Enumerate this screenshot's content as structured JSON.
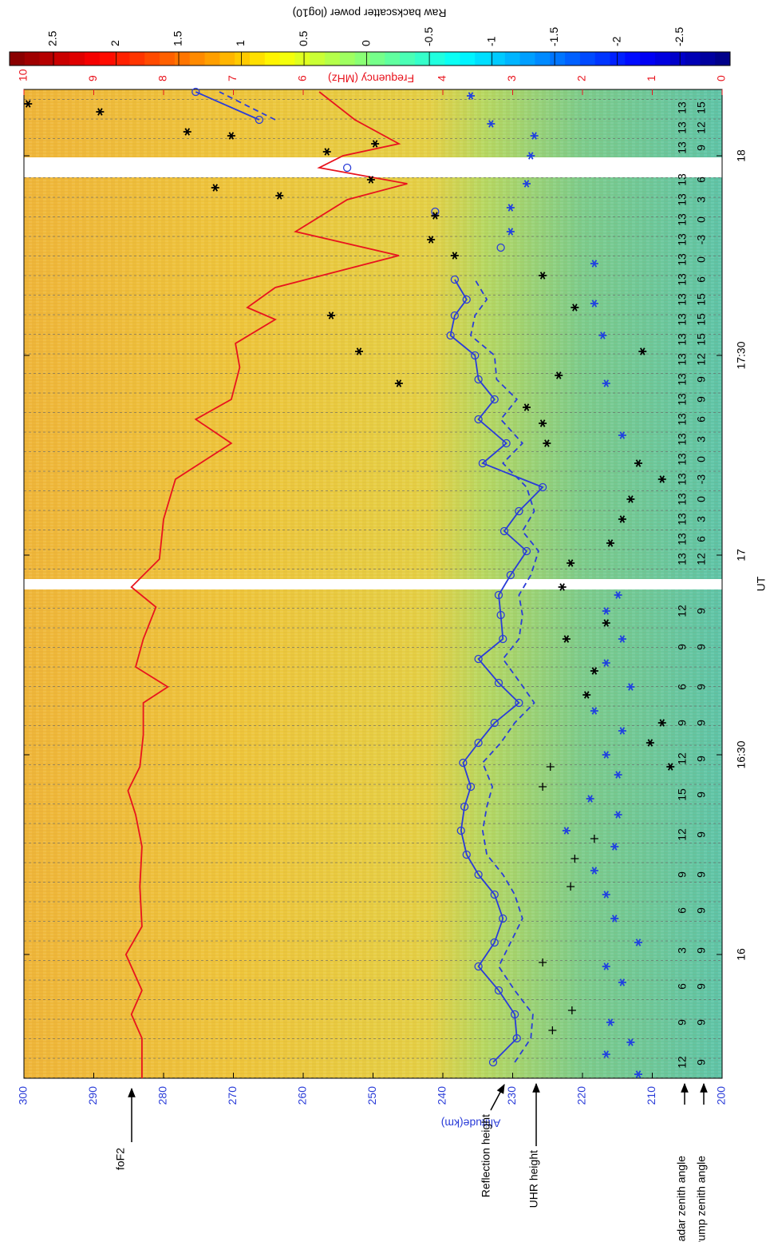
{
  "chart_data": {
    "type": "line",
    "xlabel": "UT",
    "ylabel": "Altitude(km)",
    "y2label": "Frequency (MHz)",
    "xlim": [
      15.69,
      18.166
    ],
    "xticks": [
      16,
      {
        "value": 16.5,
        "label": "16:30"
      },
      17,
      {
        "value": 17.5,
        "label": "17:30"
      },
      18
    ],
    "ylim": [
      200,
      300
    ],
    "yticks": [
      200,
      210,
      220,
      230,
      240,
      250,
      260,
      270,
      280,
      290,
      300
    ],
    "y2lim": [
      0,
      10
    ],
    "y2ticks": [
      0,
      1,
      2,
      3,
      4,
      6,
      7,
      8,
      9,
      10
    ],
    "ycolor": "#2a3cd8",
    "y2color": "#e8141e",
    "grid": false,
    "colorbar": {
      "label": "Raw backscatter power (log10)",
      "clim": [
        -2.9,
        2.85
      ],
      "ticks": [
        2.5,
        2,
        1.5,
        1,
        0.5,
        0,
        -0.5,
        -1,
        -1.5,
        -2,
        -2.5
      ]
    },
    "series": [
      {
        "name": "foF2",
        "axis": "y2",
        "color": "#e8141e",
        "linestyle": "solid",
        "marker": "none",
        "x": [
          15.69,
          15.79,
          15.85,
          15.91,
          16.0,
          16.07,
          16.17,
          16.27,
          16.35,
          16.41,
          16.47,
          16.55,
          16.63,
          16.67,
          16.72,
          16.79,
          16.87,
          16.92,
          16.99,
          17.09,
          17.19,
          17.28,
          17.34,
          17.39,
          17.47,
          17.53,
          17.59,
          17.62,
          17.67,
          17.75,
          17.81,
          17.89,
          17.93,
          17.97,
          18.0,
          18.03,
          18.09,
          18.16
        ],
        "values": [
          8.31,
          8.31,
          8.46,
          8.31,
          8.54,
          8.31,
          8.34,
          8.31,
          8.4,
          8.51,
          8.34,
          8.29,
          8.29,
          7.94,
          8.4,
          8.29,
          8.11,
          8.46,
          8.06,
          8.0,
          7.83,
          7.03,
          7.54,
          7.03,
          6.91,
          6.97,
          6.4,
          6.8,
          6.4,
          4.63,
          6.11,
          5.37,
          4.51,
          5.77,
          5.43,
          4.63,
          5.26,
          5.77
        ]
      },
      {
        "name": "Reflection height",
        "axis": "y",
        "color": "#2a3cd8",
        "linestyle": "solid",
        "marker": "circle",
        "x": [
          15.73,
          15.79,
          15.85,
          15.91,
          15.97,
          16.03,
          16.09,
          16.15,
          16.2,
          16.25,
          16.31,
          16.37,
          16.42,
          16.48,
          16.53,
          16.58,
          16.63,
          16.68,
          16.74,
          16.79,
          16.85,
          16.9,
          16.95,
          17.01,
          17.06,
          17.11,
          17.17,
          17.23,
          17.28,
          17.34,
          17.39,
          17.44,
          17.5,
          17.55,
          17.6,
          17.64,
          17.69,
          17.73,
          17.77,
          17.8,
          17.86,
          17.9,
          17.97,
          18.0,
          18.09,
          18.16
        ],
        "values": [
          232.8,
          229.4,
          229.7,
          232.0,
          234.9,
          232.6,
          231.4,
          232.6,
          234.9,
          236.6,
          237.4,
          236.9,
          236.0,
          237.1,
          234.9,
          232.6,
          229.1,
          232.0,
          234.9,
          231.4,
          231.7,
          232.0,
          230.3,
          228.0,
          231.2,
          229.1,
          225.7,
          234.3,
          230.9,
          234.9,
          232.6,
          234.9,
          235.4,
          238.9,
          238.3,
          236.6,
          238.3,
          null,
          231.7,
          null,
          241.1,
          null,
          253.7,
          null,
          266.3,
          275.4
        ]
      },
      {
        "name": "UHR height",
        "axis": "y",
        "color": "#2a3cd8",
        "linestyle": "dashed",
        "marker": "none",
        "x": [
          15.73,
          15.79,
          15.85,
          15.91,
          15.97,
          16.03,
          16.09,
          16.15,
          16.2,
          16.25,
          16.31,
          16.37,
          16.42,
          16.48,
          16.53,
          16.58,
          16.63,
          16.68,
          16.74,
          16.79,
          16.85,
          16.9,
          16.95,
          17.01,
          17.06,
          17.11,
          17.17,
          17.23,
          17.28,
          17.34,
          17.39,
          17.44,
          17.5,
          17.55,
          17.6,
          17.64,
          17.69,
          18.0,
          18.09,
          18.16
        ],
        "values": [
          229.7,
          227.4,
          227.1,
          229.7,
          232.0,
          230.3,
          228.6,
          229.7,
          231.4,
          233.7,
          234.3,
          233.7,
          232.9,
          234.3,
          231.7,
          229.7,
          226.9,
          228.9,
          231.4,
          229.1,
          228.6,
          229.1,
          227.4,
          226.3,
          228.6,
          226.9,
          228.0,
          231.4,
          228.6,
          231.7,
          229.4,
          232.3,
          232.6,
          236.0,
          235.4,
          233.7,
          235.4,
          null,
          264.0,
          272.0
        ]
      },
      {
        "axis": "y",
        "color": "#2040e0",
        "linestyle": "none",
        "marker": "star",
        "x": [
          15.7,
          15.75,
          15.78,
          15.83,
          15.93,
          15.97,
          16.03,
          16.09,
          16.15,
          16.21,
          16.27,
          16.31,
          16.35,
          16.39,
          16.45,
          16.5,
          16.56,
          16.61,
          16.67,
          16.73,
          16.79,
          16.86,
          16.9,
          17.3,
          17.43,
          17.55,
          17.63,
          17.73,
          17.81,
          17.87,
          17.93,
          18.0,
          18.05,
          18.08,
          18.15
        ],
        "values": [
          212.0,
          216.6,
          213.1,
          216.0,
          214.3,
          216.6,
          212.0,
          215.4,
          216.6,
          218.3,
          215.4,
          222.3,
          214.9,
          218.9,
          214.9,
          216.6,
          214.3,
          218.3,
          213.1,
          216.6,
          214.3,
          216.6,
          214.9,
          214.3,
          216.6,
          217.1,
          218.3,
          218.3,
          230.3,
          230.3,
          228.0,
          227.4,
          226.9,
          233.1,
          236.0
        ]
      },
      {
        "axis": "y",
        "color": "#000000",
        "linestyle": "none",
        "marker": "star",
        "x": [
          16.47,
          16.53,
          16.58,
          16.65,
          16.71,
          16.79,
          16.83,
          16.92,
          16.98,
          17.03,
          17.09,
          17.14,
          17.19,
          17.23,
          17.28,
          17.33,
          17.37,
          17.45,
          17.51,
          17.62,
          17.7,
          17.75,
          17.79,
          17.85,
          17.43,
          17.51,
          17.6,
          17.9,
          17.92,
          17.94,
          18.01,
          18.03,
          18.06,
          18.11,
          18.13,
          18.05
        ],
        "values": [
          207.4,
          210.3,
          208.6,
          219.4,
          218.3,
          222.3,
          216.6,
          222.9,
          221.7,
          216.0,
          214.3,
          213.1,
          208.6,
          212.0,
          225.1,
          225.7,
          228.0,
          223.4,
          211.4,
          221.1,
          225.7,
          238.3,
          241.7,
          241.1,
          246.3,
          252.0,
          256.0,
          263.4,
          272.6,
          250.3,
          256.6,
          249.7,
          276.6,
          289.1,
          299.4,
          270.3
        ]
      },
      {
        "axis": "y",
        "color": "#000000",
        "linestyle": "none",
        "marker": "plus",
        "x": [
          15.81,
          15.86,
          15.98,
          16.17,
          16.24,
          16.29,
          16.42,
          16.47
        ],
        "values": [
          224.3,
          221.5,
          225.7,
          221.7,
          221.1,
          218.3,
          225.7,
          224.6
        ]
      }
    ],
    "zenith_angles": [
      {
        "name": "Radar zenith angle",
        "x": [
          15.73,
          15.83,
          15.92,
          16.01,
          16.11,
          16.2,
          16.3,
          16.4,
          16.49,
          16.58,
          16.67,
          16.77,
          16.86,
          16.99,
          17.04,
          17.09,
          17.14,
          17.19,
          17.24,
          17.29,
          17.34,
          17.39,
          17.44,
          17.49,
          17.54,
          17.59,
          17.64,
          17.69,
          17.74,
          17.79,
          17.84,
          17.89,
          17.94,
          18.02,
          18.07,
          18.12
        ],
        "values": [
          12,
          9,
          6,
          3,
          6,
          9,
          12,
          15,
          12,
          9,
          6,
          9,
          12,
          13,
          13,
          13,
          13,
          13,
          13,
          13,
          13,
          13,
          13,
          13,
          13,
          13,
          13,
          13,
          13,
          13,
          13,
          13,
          13,
          13,
          13,
          13
        ]
      },
      {
        "name": "Pump zenith angle",
        "x": [
          15.73,
          15.83,
          15.92,
          16.01,
          16.11,
          16.2,
          16.3,
          16.4,
          16.49,
          16.58,
          16.67,
          16.77,
          16.86,
          16.99,
          17.04,
          17.09,
          17.14,
          17.19,
          17.24,
          17.29,
          17.34,
          17.39,
          17.44,
          17.49,
          17.54,
          17.59,
          17.64,
          17.69,
          17.74,
          17.79,
          17.84,
          17.89,
          17.94,
          18.02,
          18.07,
          18.12
        ],
        "values": [
          9,
          9,
          9,
          9,
          9,
          9,
          9,
          9,
          9,
          9,
          9,
          9,
          9,
          12,
          6,
          3,
          0,
          -3,
          0,
          3,
          6,
          9,
          9,
          12,
          15,
          15,
          15,
          6,
          0,
          -3,
          0,
          3,
          6,
          9,
          12,
          15
        ]
      }
    ]
  }
}
